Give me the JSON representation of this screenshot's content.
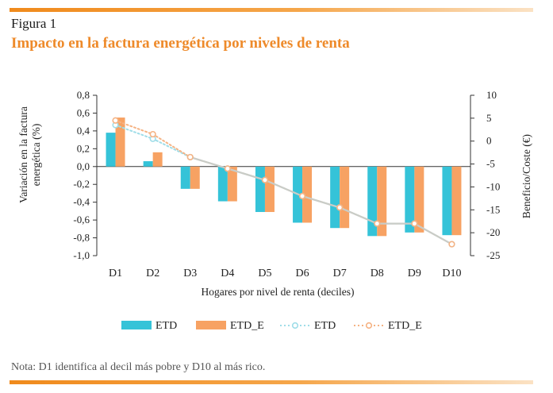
{
  "figure": {
    "label": "Figura 1",
    "title": "Impacto en la factura energética por niveles de renta",
    "note": "Nota: D1 identifica al decil más pobre y D10 al más rico."
  },
  "colors": {
    "accent": "#ee8a2a",
    "etd": "#35c3d8",
    "etd_e": "#f7a263",
    "line_etd": "#9fdde8",
    "line_etd_e": "#f5b384",
    "line_combined": "#c9ccc7"
  },
  "chart_data": {
    "type": "bar",
    "xlabel": "Hogares por nivel de renta (deciles)",
    "ylabel_left_lines": [
      "Variación en la factura",
      "energética  (%)"
    ],
    "ylabel_right": "Beneficio/Coste (€)",
    "categories": [
      "D1",
      "D2",
      "D3",
      "D4",
      "D5",
      "D6",
      "D7",
      "D8",
      "D9",
      "D10"
    ],
    "ylim_left": [
      -1.0,
      0.8
    ],
    "yticks_left": [
      "0,8",
      "0,6",
      "0,4",
      "0,2",
      "0,0",
      "-0,2",
      "-0,4",
      "-0,6",
      "-0,8",
      "-1,0"
    ],
    "ylim_right": [
      -25,
      10
    ],
    "yticks_right": [
      "10",
      "5",
      "0",
      "-5",
      "-10",
      "-15",
      "-20",
      "-25"
    ],
    "bar_series": [
      {
        "name": "ETD",
        "values": [
          0.38,
          0.06,
          -0.25,
          -0.39,
          -0.51,
          -0.63,
          -0.69,
          -0.78,
          -0.74,
          -0.77
        ]
      },
      {
        "name": "ETD_E",
        "values": [
          0.55,
          0.16,
          -0.25,
          -0.39,
          -0.51,
          -0.63,
          -0.69,
          -0.78,
          -0.74,
          -0.77
        ]
      }
    ],
    "line_series": [
      {
        "name": "ETD",
        "values": [
          3.5,
          0.5,
          -3.5,
          -6.0,
          -8.5,
          -12.0,
          -14.5,
          -18.0,
          -18.0,
          -22.5
        ]
      },
      {
        "name": "ETD_E",
        "values": [
          4.5,
          1.5,
          -3.5,
          -6.0,
          -8.5,
          -12.0,
          -14.5,
          -18.0,
          -18.0,
          -22.5
        ]
      }
    ],
    "legend": [
      "ETD",
      "ETD_E",
      "ETD",
      "ETD_E"
    ],
    "legend_position": "bottom"
  }
}
